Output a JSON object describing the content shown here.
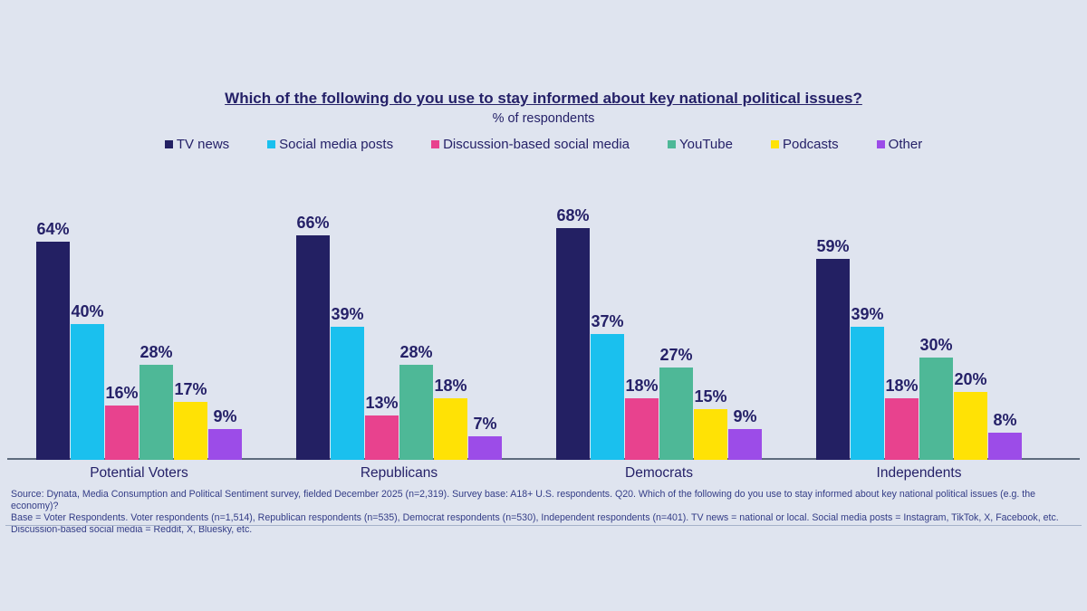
{
  "colors": {
    "background": "#dfe4ef",
    "text_navy": "#252168",
    "source_text": "#333c86",
    "axis_line": "#5e6b7d",
    "separator_line": "#a6b2ca"
  },
  "chart_data": {
    "type": "bar",
    "title": "Which of the following do you use to stay informed about key national political issues?",
    "subtitle": "% of respondents",
    "value_suffix": "%",
    "ylim": [
      0,
      100
    ],
    "grid": false,
    "legend_position": "top",
    "categories": [
      "Potential Voters",
      "Republicans",
      "Democrats",
      "Independents"
    ],
    "series": [
      {
        "name": "TV news",
        "color": "#232063",
        "values": [
          64,
          66,
          68,
          59
        ]
      },
      {
        "name": "Social media posts",
        "color": "#1ac0ee",
        "values": [
          40,
          39,
          37,
          39
        ]
      },
      {
        "name": "Discussion-based social media",
        "color": "#e8428e",
        "values": [
          16,
          13,
          18,
          18
        ]
      },
      {
        "name": "YouTube",
        "color": "#4eb897",
        "values": [
          28,
          28,
          27,
          30
        ]
      },
      {
        "name": "Podcasts",
        "color": "#ffe205",
        "values": [
          17,
          18,
          15,
          20
        ]
      },
      {
        "name": "Other",
        "color": "#9c4ce8",
        "values": [
          9,
          7,
          9,
          8
        ]
      }
    ],
    "source_lines": [
      "Source: Dynata, Media Consumption and Political Sentiment survey, fielded December 2025 (n=2,319). Survey base: A18+ U.S. respondents. Q20. Which of the following do you use to stay informed about key national political issues (e.g. the economy)?",
      "Base = Voter Respondents. Voter respondents (n=1,514), Republican respondents (n=535), Democrat respondents (n=530), Independent respondents (n=401). TV news = national or local. Social media posts = Instagram, TikTok, X, Facebook, etc.",
      "Discussion-based social media = Reddit, X, Bluesky, etc."
    ]
  }
}
